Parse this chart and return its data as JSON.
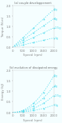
{
  "title_a": "(a) couple developpement",
  "title_b": "(b) evolution of dissipated energy",
  "ylabel_a": "Torque (N.m)",
  "ylabel_b": "Energy (kJ)",
  "xlabel": "Speed (rpm)",
  "speed": [
    0,
    500,
    1000,
    1500,
    2000
  ],
  "masses": [
    "5g",
    "4g",
    "2.5g",
    "1g"
  ],
  "torque_slopes": [
    0.0009,
    0.00068,
    0.00046,
    0.00022
  ],
  "energy_data": {
    "5g": [
      0,
      0.1,
      0.42,
      0.95,
      1.75
    ],
    "4g": [
      0,
      0.07,
      0.3,
      0.68,
      1.25
    ],
    "2.5g": [
      0,
      0.04,
      0.18,
      0.42,
      0.8
    ],
    "1g": [
      0,
      0.02,
      0.08,
      0.18,
      0.35
    ]
  },
  "line_color": "#55ddee",
  "marker_color": "#55ddee",
  "bg_color": "#f5feff",
  "ylim_a": [
    0,
    2.0
  ],
  "ylim_b": [
    0,
    2.0
  ],
  "xlim": [
    0,
    2000
  ],
  "yticks_a": [
    0,
    0.5,
    1.0,
    1.5,
    2.0
  ],
  "yticks_b": [
    0,
    0.5,
    1.0,
    1.5,
    2.0
  ],
  "xticks": [
    0,
    500,
    1000,
    1500,
    2000
  ]
}
